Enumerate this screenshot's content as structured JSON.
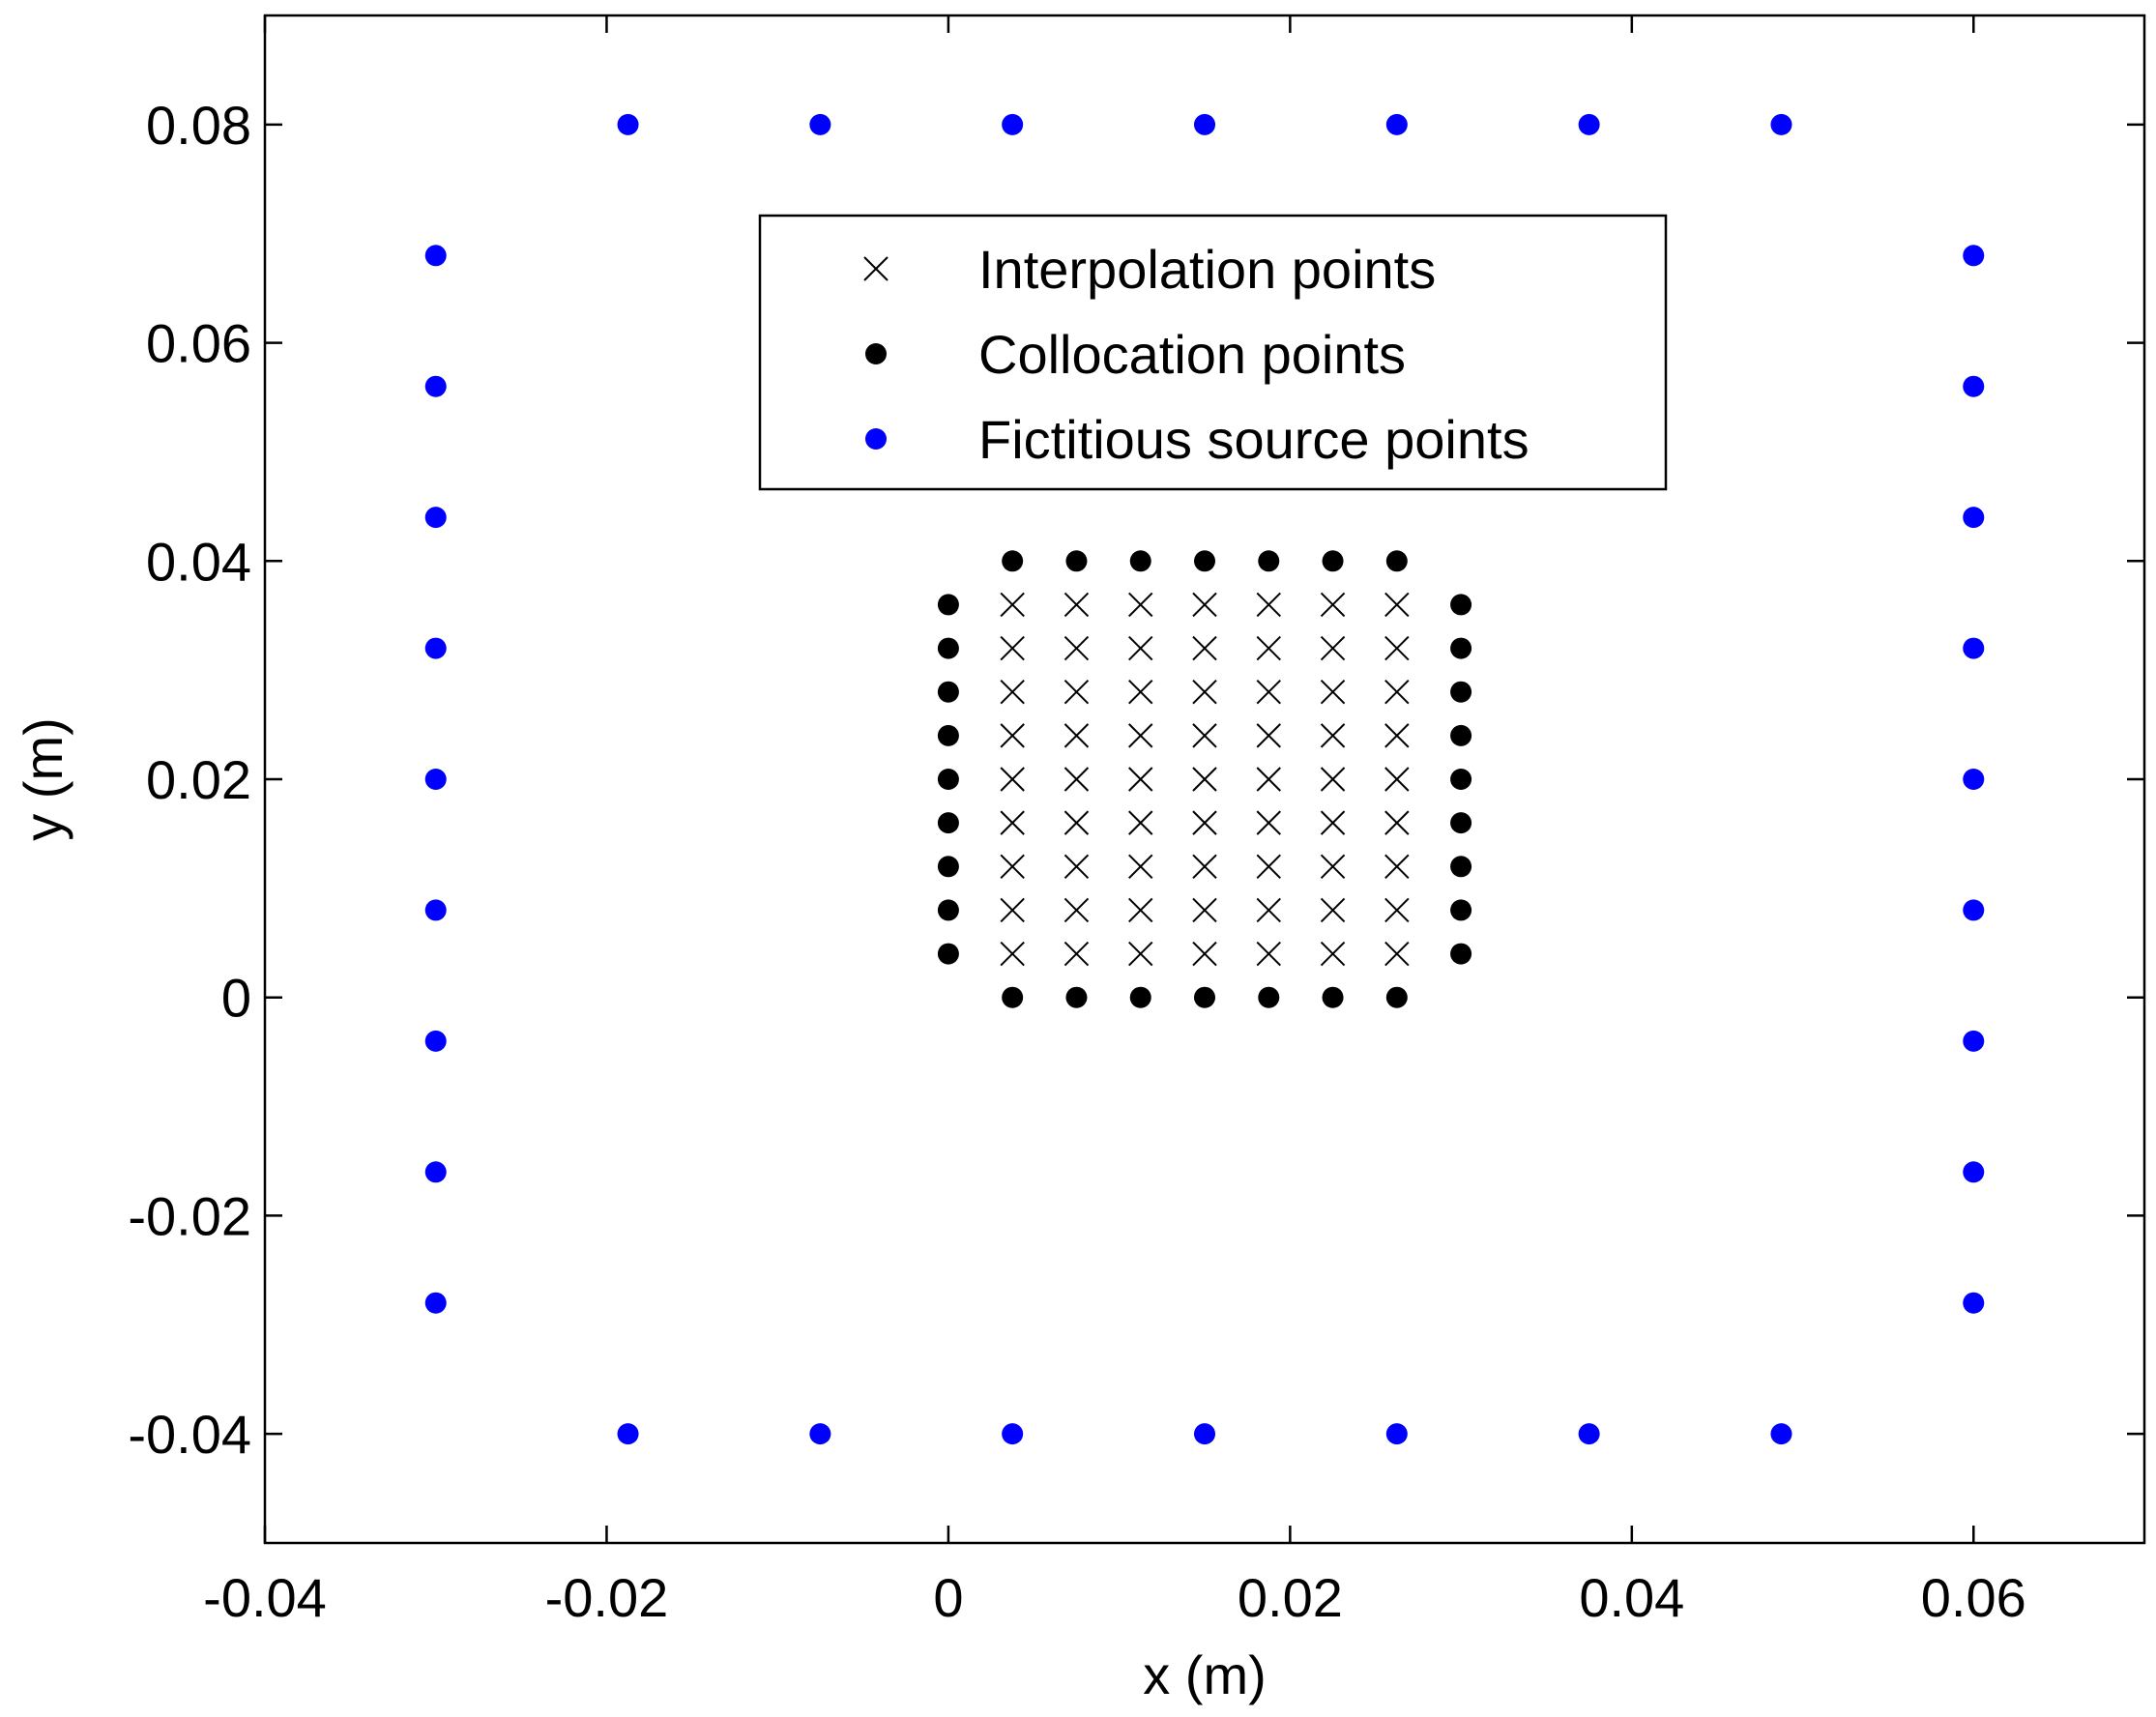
{
  "chart_data": {
    "type": "scatter",
    "title": "",
    "xlabel": "x (m)",
    "ylabel": "y (m)",
    "xlim": [
      -0.04,
      0.07
    ],
    "ylim": [
      -0.05,
      0.09
    ],
    "xticks": [
      -0.04,
      -0.02,
      0,
      0.02,
      0.04,
      0.06
    ],
    "xtick_labels": [
      "-0.04",
      "-0.02",
      "0",
      "0.02",
      "0.04",
      "0.06"
    ],
    "yticks": [
      -0.04,
      -0.02,
      0,
      0.02,
      0.04,
      0.06,
      0.08
    ],
    "ytick_labels": [
      "-0.04",
      "-0.02",
      "0",
      "0.02",
      "0.04",
      "0.06",
      "0.08"
    ],
    "grid": false,
    "legend_position": "top-center",
    "series": [
      {
        "name": "Interpolation points",
        "marker": "x",
        "color": "#000000",
        "grid_x": [
          0.00375,
          0.0075,
          0.01125,
          0.015,
          0.01875,
          0.0225,
          0.02625
        ],
        "grid_y": [
          0.004,
          0.008,
          0.012,
          0.016,
          0.02,
          0.024,
          0.028,
          0.032,
          0.036
        ]
      },
      {
        "name": "Collocation points",
        "marker": "filled-circle",
        "color": "#000000",
        "points": [
          [
            0.00375,
            0
          ],
          [
            0.0075,
            0
          ],
          [
            0.01125,
            0
          ],
          [
            0.015,
            0
          ],
          [
            0.01875,
            0
          ],
          [
            0.0225,
            0
          ],
          [
            0.02625,
            0
          ],
          [
            0.00375,
            0.04
          ],
          [
            0.0075,
            0.04
          ],
          [
            0.01125,
            0.04
          ],
          [
            0.015,
            0.04
          ],
          [
            0.01875,
            0.04
          ],
          [
            0.0225,
            0.04
          ],
          [
            0.02625,
            0.04
          ],
          [
            0,
            0.004
          ],
          [
            0,
            0.008
          ],
          [
            0,
            0.012
          ],
          [
            0,
            0.016
          ],
          [
            0,
            0.02
          ],
          [
            0,
            0.024
          ],
          [
            0,
            0.028
          ],
          [
            0,
            0.032
          ],
          [
            0,
            0.036
          ],
          [
            0.03,
            0.004
          ],
          [
            0.03,
            0.008
          ],
          [
            0.03,
            0.012
          ],
          [
            0.03,
            0.016
          ],
          [
            0.03,
            0.02
          ],
          [
            0.03,
            0.024
          ],
          [
            0.03,
            0.028
          ],
          [
            0.03,
            0.032
          ],
          [
            0.03,
            0.036
          ]
        ]
      },
      {
        "name": "Fictitious source points",
        "marker": "filled-circle",
        "color": "#0000ff",
        "points": [
          [
            -0.01875,
            0.08
          ],
          [
            -0.0075,
            0.08
          ],
          [
            0.00375,
            0.08
          ],
          [
            0.015,
            0.08
          ],
          [
            0.02625,
            0.08
          ],
          [
            0.0375,
            0.08
          ],
          [
            0.04875,
            0.08
          ],
          [
            -0.01875,
            -0.04
          ],
          [
            -0.0075,
            -0.04
          ],
          [
            0.00375,
            -0.04
          ],
          [
            0.015,
            -0.04
          ],
          [
            0.02625,
            -0.04
          ],
          [
            0.0375,
            -0.04
          ],
          [
            0.04875,
            -0.04
          ],
          [
            -0.03,
            0.068
          ],
          [
            -0.03,
            0.056
          ],
          [
            -0.03,
            0.044
          ],
          [
            -0.03,
            0.032
          ],
          [
            -0.03,
            0.02
          ],
          [
            -0.03,
            0.008
          ],
          [
            -0.03,
            -0.004
          ],
          [
            -0.03,
            -0.016
          ],
          [
            -0.03,
            -0.028
          ],
          [
            0.06,
            0.068
          ],
          [
            0.06,
            0.056
          ],
          [
            0.06,
            0.044
          ],
          [
            0.06,
            0.032
          ],
          [
            0.06,
            0.02
          ],
          [
            0.06,
            0.008
          ],
          [
            0.06,
            -0.004
          ],
          [
            0.06,
            -0.016
          ],
          [
            0.06,
            -0.028
          ]
        ]
      }
    ]
  }
}
